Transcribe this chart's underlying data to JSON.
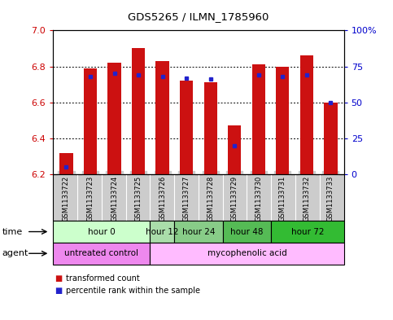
{
  "title": "GDS5265 / ILMN_1785960",
  "samples": [
    "GSM1133722",
    "GSM1133723",
    "GSM1133724",
    "GSM1133725",
    "GSM1133726",
    "GSM1133727",
    "GSM1133728",
    "GSM1133729",
    "GSM1133730",
    "GSM1133731",
    "GSM1133732",
    "GSM1133733"
  ],
  "transformed_counts": [
    6.32,
    6.79,
    6.82,
    6.9,
    6.83,
    6.72,
    6.71,
    6.47,
    6.81,
    6.8,
    6.86,
    6.6
  ],
  "percentile_ranks": [
    5,
    68,
    70,
    69,
    68,
    67,
    66,
    20,
    69,
    68,
    69,
    50
  ],
  "y_min": 6.2,
  "y_max": 7.0,
  "y_ticks": [
    6.2,
    6.4,
    6.6,
    6.8,
    7.0
  ],
  "y2_ticks": [
    0,
    25,
    50,
    75,
    100
  ],
  "bar_color": "#cc1111",
  "percentile_color": "#2222cc",
  "time_groups": [
    {
      "label": "hour 0",
      "start": 0,
      "end": 3,
      "color": "#ccffcc"
    },
    {
      "label": "hour 12",
      "start": 4,
      "end": 4,
      "color": "#aaddaa"
    },
    {
      "label": "hour 24",
      "start": 5,
      "end": 6,
      "color": "#88cc88"
    },
    {
      "label": "hour 48",
      "start": 7,
      "end": 8,
      "color": "#55bb55"
    },
    {
      "label": "hour 72",
      "start": 9,
      "end": 11,
      "color": "#33bb33"
    }
  ],
  "agent_groups": [
    {
      "label": "untreated control",
      "start": 0,
      "end": 3,
      "color": "#ee88ee"
    },
    {
      "label": "mycophenolic acid",
      "start": 4,
      "end": 11,
      "color": "#ffbbff"
    }
  ],
  "left_label_color": "#cc0000",
  "right_label_color": "#0000cc",
  "sample_bg_color": "#cccccc"
}
